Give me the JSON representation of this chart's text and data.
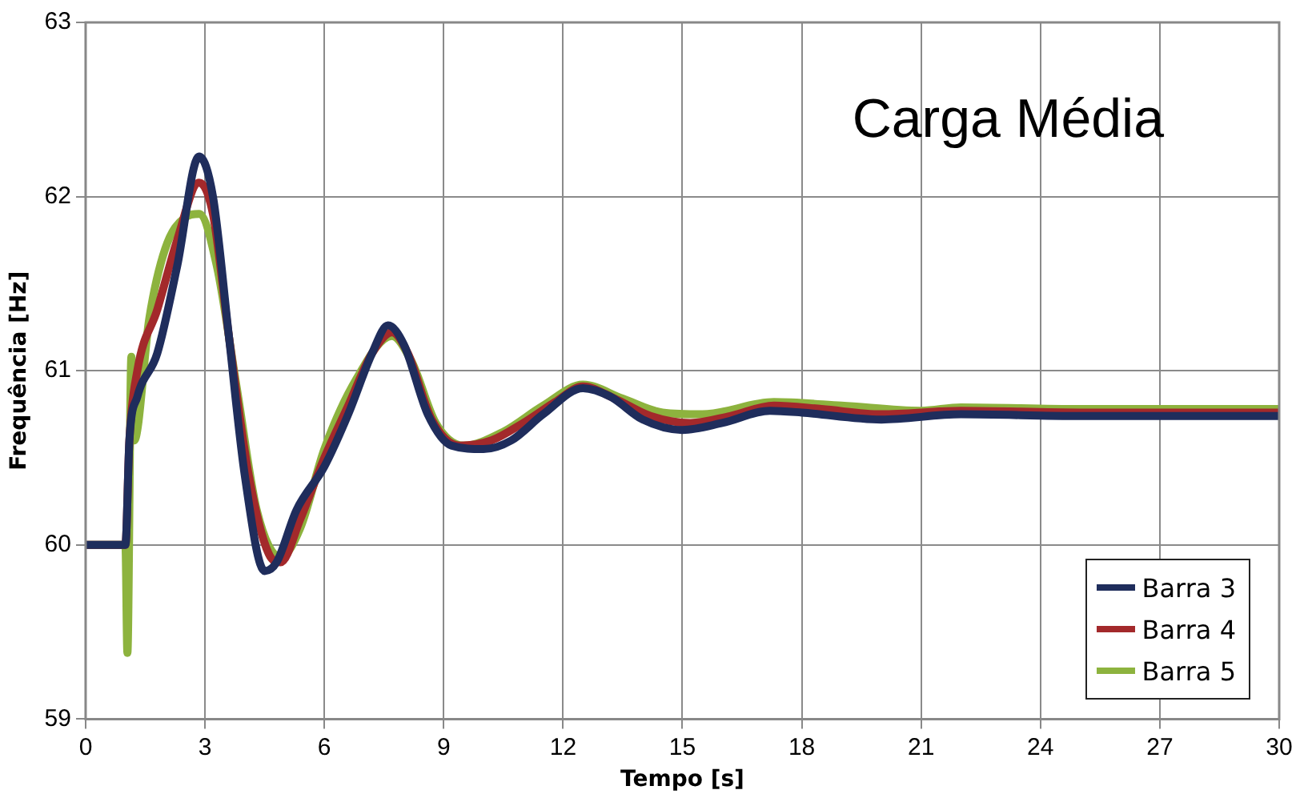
{
  "chart_data": {
    "type": "line",
    "title": "Carga Média",
    "xlabel": "Tempo [s]",
    "ylabel": "Frequência [Hz]",
    "xlim": [
      0,
      30
    ],
    "xticks": [
      0,
      3,
      6,
      9,
      12,
      15,
      18,
      21,
      24,
      27,
      30
    ],
    "ylim": [
      59,
      63
    ],
    "yticks": [
      59,
      60,
      61,
      62,
      63
    ],
    "grid": true,
    "legend": "bottom right",
    "marker": "none",
    "line_style": "solid",
    "series": [
      {
        "name": "Barra 3",
        "color": "#1f2d5c",
        "x": [
          0,
          1,
          1.1,
          1.3,
          1.8,
          2.3,
          2.85,
          3.2,
          3.6,
          4.0,
          4.5,
          4.8,
          5.3,
          6,
          6.6,
          7.2,
          7.6,
          8.0,
          8.6,
          9.2,
          10,
          10.7,
          11.5,
          12.5,
          13.2,
          14,
          15,
          16,
          17.2,
          18,
          20,
          22,
          25,
          30
        ],
        "values": [
          60,
          60,
          60.6,
          60.85,
          61.1,
          61.6,
          62.23,
          62.0,
          61.2,
          60.4,
          59.85,
          59.9,
          60.2,
          60.45,
          60.75,
          61.1,
          61.26,
          61.15,
          60.75,
          60.57,
          60.55,
          60.6,
          60.75,
          60.9,
          60.85,
          60.72,
          60.66,
          60.7,
          60.77,
          60.76,
          60.72,
          60.75,
          60.74,
          60.74
        ]
      },
      {
        "name": "Barra 4",
        "color": "#a3292b",
        "x": [
          0,
          1,
          1.1,
          1.3,
          1.8,
          2.3,
          2.85,
          3.2,
          3.6,
          4.1,
          4.6,
          4.9,
          5.4,
          6,
          6.6,
          7.2,
          7.7,
          8.1,
          8.7,
          9.4,
          10.2,
          11,
          11.8,
          12.5,
          13.3,
          14.2,
          15.2,
          16.2,
          17.3,
          18.5,
          20,
          22,
          25,
          30
        ],
        "values": [
          60,
          60,
          60.6,
          61.0,
          61.35,
          61.75,
          62.08,
          61.9,
          61.2,
          60.4,
          59.95,
          59.9,
          60.15,
          60.5,
          60.8,
          61.1,
          61.22,
          61.1,
          60.72,
          60.57,
          60.6,
          60.7,
          60.82,
          60.91,
          60.84,
          60.74,
          60.7,
          60.74,
          60.8,
          60.78,
          60.75,
          60.77,
          60.76,
          60.76
        ]
      },
      {
        "name": "Barra 5",
        "color": "#8db33e",
        "x": [
          0,
          1,
          1.05,
          1.15,
          1.22,
          1.6,
          2.0,
          2.5,
          2.85,
          3.3,
          3.8,
          4.3,
          4.9,
          5.4,
          6,
          6.8,
          7.7,
          8.2,
          8.8,
          9.5,
          10.5,
          11.5,
          12.5,
          13.5,
          14.5,
          15.5,
          17.3,
          19,
          21,
          22,
          25,
          30
        ],
        "values": [
          60,
          60,
          59.38,
          61.08,
          60.6,
          61.3,
          61.7,
          61.88,
          61.9,
          61.6,
          60.9,
          60.2,
          59.93,
          60.1,
          60.55,
          60.95,
          61.2,
          61.05,
          60.7,
          60.57,
          60.65,
          60.8,
          60.92,
          60.84,
          60.76,
          60.75,
          60.82,
          60.8,
          60.77,
          60.79,
          60.78,
          60.78
        ]
      }
    ]
  }
}
